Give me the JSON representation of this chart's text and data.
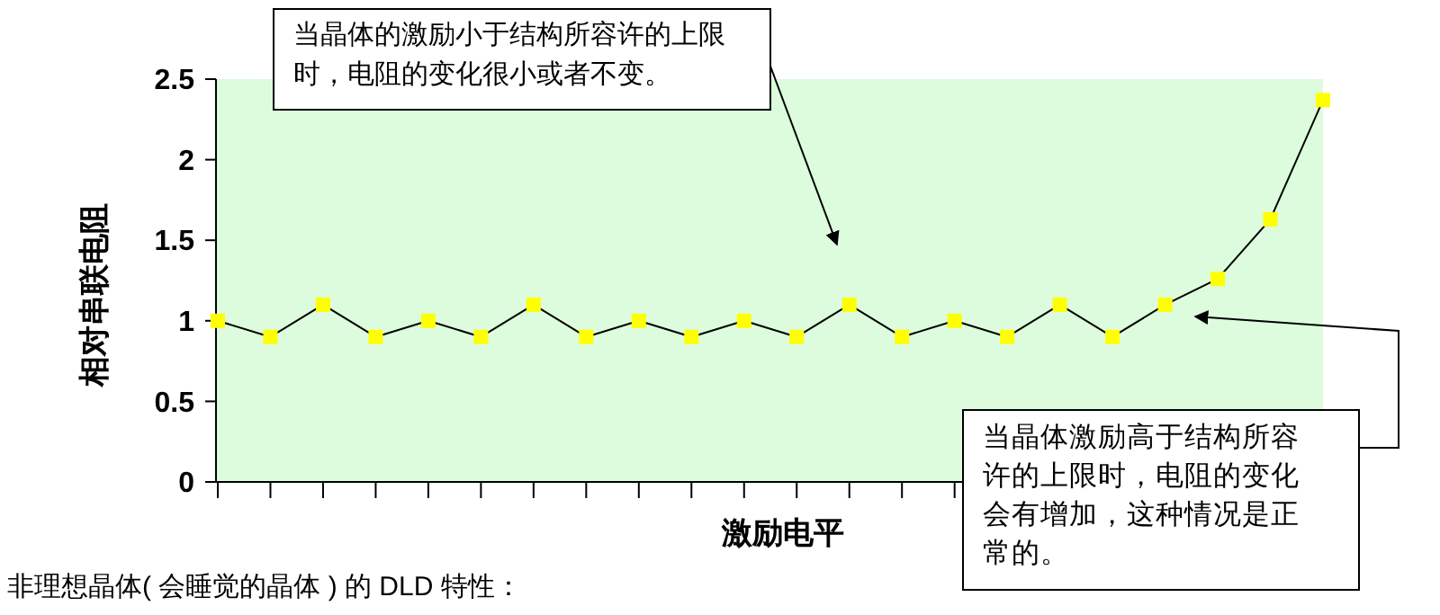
{
  "chart_data": {
    "type": "line",
    "xlabel": "激励电平",
    "ylabel": "相对串联电阻",
    "categories": [
      null,
      null,
      null,
      null,
      null,
      null,
      null,
      null,
      null,
      null,
      null,
      null,
      null,
      null,
      null,
      null,
      null,
      null,
      null,
      null,
      null,
      null
    ],
    "series": [
      {
        "color": "#ffff00",
        "values": [
          1,
          0.9,
          1.1,
          0.9,
          1,
          0.9,
          1.1,
          0.9,
          1,
          0.9,
          1,
          0.9,
          1.1,
          0.9,
          1,
          0.9,
          1.1,
          0.9,
          1.1,
          1.26,
          1.63,
          2.37
        ]
      }
    ],
    "ylim": [
      0,
      2.5
    ],
    "yticks": [
      0,
      0.5,
      1,
      1.5,
      2,
      2.5
    ],
    "grid": false,
    "marker": "square",
    "line_style": "solid",
    "tick_labels": "y",
    "annotations": [
      "当晶体的激励小于结构所容许的上限时，电阻的变化很小或者不变。",
      "当晶体激励高于结构所容许的上限时，电阻的变化会有增加，这种情况是正常的。",
      "非理想晶体( 会睡觉的晶体 ) 的 DLD 特性："
    ]
  }
}
